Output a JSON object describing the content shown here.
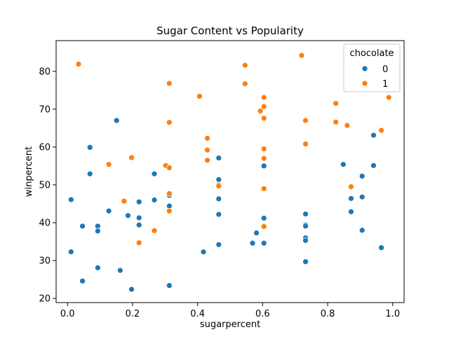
{
  "chart_data": {
    "type": "scatter",
    "title": "Sugar Content vs Popularity",
    "xlabel": "sugarpercent",
    "ylabel": "winpercent",
    "xlim": [
      -0.035,
      1.035
    ],
    "ylim": [
      18.9,
      88.1
    ],
    "xticks": [
      0.0,
      0.2,
      0.4,
      0.6,
      0.8,
      1.0
    ],
    "xtick_labels": [
      "0.0",
      "0.2",
      "0.4",
      "0.6",
      "0.8",
      "1.0"
    ],
    "yticks": [
      20,
      30,
      40,
      50,
      60,
      70,
      80
    ],
    "ytick_labels": [
      "20",
      "30",
      "40",
      "50",
      "60",
      "70",
      "80"
    ],
    "grid": false,
    "legend": {
      "title": "chocolate",
      "placement": "top-right"
    },
    "series": [
      {
        "name": "0",
        "color": "#1f77b4",
        "points": [
          [
            0.011,
            46.1
          ],
          [
            0.011,
            32.3
          ],
          [
            0.046,
            39.1
          ],
          [
            0.046,
            24.6
          ],
          [
            0.069,
            59.9
          ],
          [
            0.069,
            52.9
          ],
          [
            0.093,
            39.1
          ],
          [
            0.093,
            37.8
          ],
          [
            0.093,
            28.1
          ],
          [
            0.127,
            43.1
          ],
          [
            0.151,
            67.0
          ],
          [
            0.162,
            27.4
          ],
          [
            0.186,
            41.9
          ],
          [
            0.197,
            22.4
          ],
          [
            0.22,
            45.5
          ],
          [
            0.22,
            41.3
          ],
          [
            0.22,
            39.4
          ],
          [
            0.267,
            52.9
          ],
          [
            0.267,
            46.0
          ],
          [
            0.313,
            47.2
          ],
          [
            0.313,
            44.4
          ],
          [
            0.313,
            23.4
          ],
          [
            0.418,
            32.3
          ],
          [
            0.465,
            57.1
          ],
          [
            0.465,
            51.4
          ],
          [
            0.465,
            46.3
          ],
          [
            0.465,
            42.2
          ],
          [
            0.465,
            34.2
          ],
          [
            0.569,
            34.6
          ],
          [
            0.581,
            37.3
          ],
          [
            0.604,
            55.0
          ],
          [
            0.604,
            41.2
          ],
          [
            0.604,
            34.6
          ],
          [
            0.732,
            42.3
          ],
          [
            0.732,
            39.4
          ],
          [
            0.732,
            39.1
          ],
          [
            0.732,
            36.0
          ],
          [
            0.732,
            35.3
          ],
          [
            0.732,
            29.7
          ],
          [
            0.848,
            55.4
          ],
          [
            0.872,
            46.4
          ],
          [
            0.872,
            42.9
          ],
          [
            0.906,
            52.3
          ],
          [
            0.906,
            46.8
          ],
          [
            0.906,
            38.0
          ],
          [
            0.941,
            63.1
          ],
          [
            0.941,
            55.1
          ],
          [
            0.965,
            33.4
          ]
        ]
      },
      {
        "name": "1",
        "color": "#ff7f0e",
        "points": [
          [
            0.034,
            81.9
          ],
          [
            0.127,
            55.4
          ],
          [
            0.174,
            45.7
          ],
          [
            0.197,
            57.2
          ],
          [
            0.22,
            34.7
          ],
          [
            0.267,
            37.9
          ],
          [
            0.302,
            55.1
          ],
          [
            0.313,
            76.8
          ],
          [
            0.313,
            66.5
          ],
          [
            0.313,
            54.5
          ],
          [
            0.313,
            47.7
          ],
          [
            0.313,
            43.1
          ],
          [
            0.406,
            73.4
          ],
          [
            0.43,
            62.3
          ],
          [
            0.43,
            59.2
          ],
          [
            0.43,
            56.5
          ],
          [
            0.465,
            50.0
          ],
          [
            0.465,
            49.7
          ],
          [
            0.546,
            81.6
          ],
          [
            0.546,
            76.7
          ],
          [
            0.593,
            69.5
          ],
          [
            0.604,
            73.1
          ],
          [
            0.604,
            70.7
          ],
          [
            0.604,
            67.6
          ],
          [
            0.604,
            59.5
          ],
          [
            0.604,
            57.0
          ],
          [
            0.604,
            49.0
          ],
          [
            0.604,
            39.0
          ],
          [
            0.72,
            84.2
          ],
          [
            0.732,
            67.0
          ],
          [
            0.732,
            60.8
          ],
          [
            0.825,
            71.5
          ],
          [
            0.825,
            66.6
          ],
          [
            0.86,
            65.7
          ],
          [
            0.872,
            49.5
          ],
          [
            0.965,
            64.4
          ],
          [
            0.988,
            73.1
          ]
        ]
      }
    ]
  }
}
